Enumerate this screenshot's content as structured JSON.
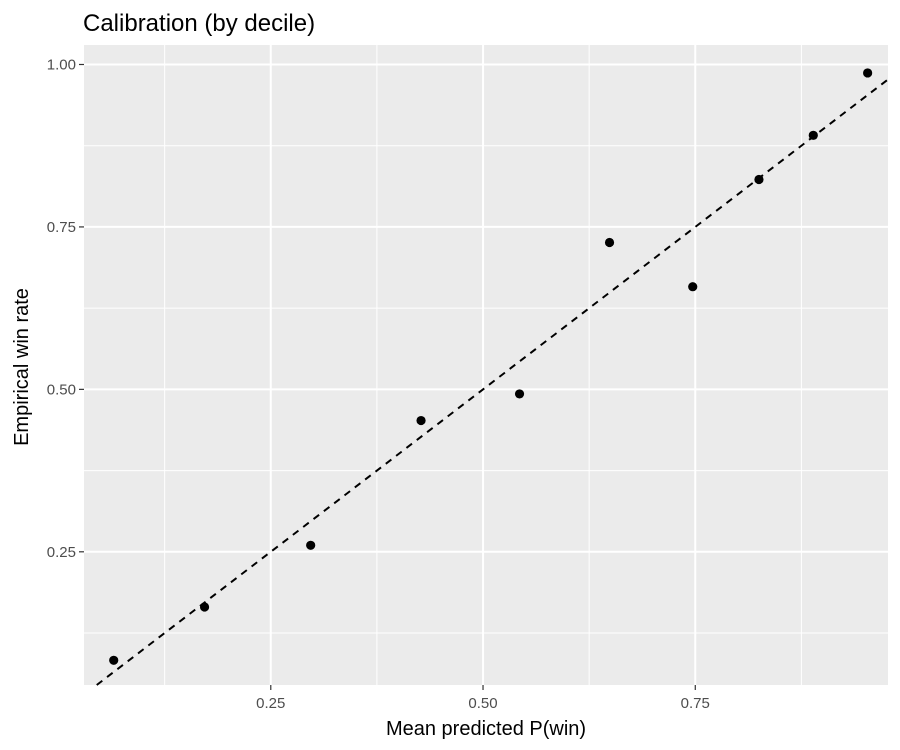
{
  "chart_data": {
    "type": "scatter",
    "title": "Calibration (by decile)",
    "xlabel": "Mean predicted P(win)",
    "ylabel": "Empirical win rate",
    "xlim": [
      0.03,
      0.977
    ],
    "ylim": [
      0.045,
      1.03
    ],
    "x_ticks": [
      0.25,
      0.5,
      0.75
    ],
    "x_tick_labels": [
      "0.25",
      "0.50",
      "0.75"
    ],
    "x_minor_ticks": [
      0.125,
      0.375,
      0.625,
      0.875
    ],
    "y_ticks": [
      0.25,
      0.5,
      0.75,
      1.0
    ],
    "y_tick_labels": [
      "0.25",
      "0.50",
      "0.75",
      "1.00"
    ],
    "y_minor_ticks": [
      0.125,
      0.375,
      0.625,
      0.875
    ],
    "grid": true,
    "reference_line": {
      "style": "dashed",
      "from": [
        0,
        0
      ],
      "to": [
        1,
        1
      ],
      "color": "#000000"
    },
    "points": [
      {
        "x": 0.065,
        "y": 0.083
      },
      {
        "x": 0.172,
        "y": 0.165
      },
      {
        "x": 0.297,
        "y": 0.26
      },
      {
        "x": 0.427,
        "y": 0.452
      },
      {
        "x": 0.543,
        "y": 0.493
      },
      {
        "x": 0.649,
        "y": 0.726
      },
      {
        "x": 0.747,
        "y": 0.658
      },
      {
        "x": 0.825,
        "y": 0.823
      },
      {
        "x": 0.889,
        "y": 0.891
      },
      {
        "x": 0.953,
        "y": 0.987
      }
    ],
    "colors": {
      "panel": "#ebebeb",
      "grid": "#ffffff",
      "point": "#000000"
    }
  }
}
